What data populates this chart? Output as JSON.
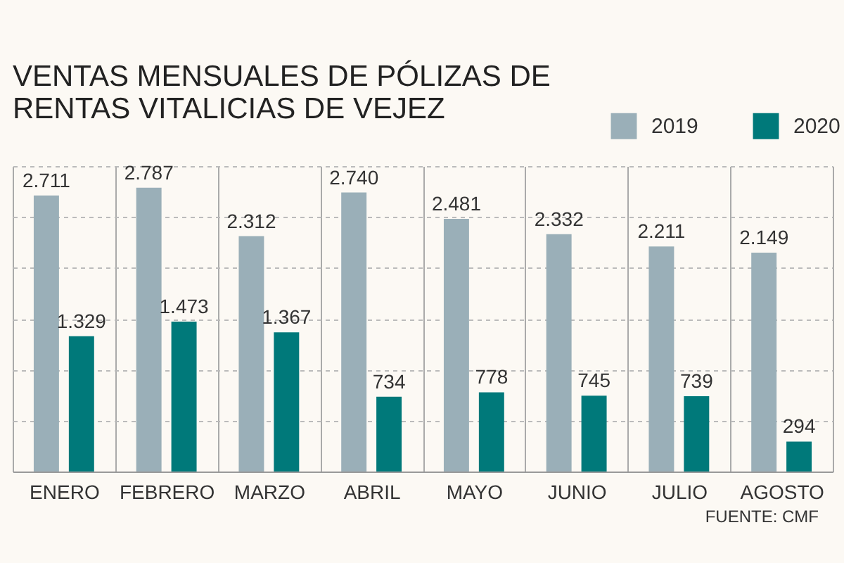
{
  "chart_data": {
    "type": "bar",
    "title": "VENTAS MENSUALES DE PÓLIZAS DE RENTAS VITALICIAS DE VEJEZ",
    "categories": [
      "ENERO",
      "FEBRERO",
      "MARZO",
      "ABRIL",
      "MAYO",
      "JUNIO",
      "JULIO",
      "AGOSTO"
    ],
    "series": [
      {
        "name": "2019",
        "color": "#9aafb8",
        "values": [
          2711,
          2787,
          2312,
          2740,
          2481,
          2332,
          2211,
          2149
        ],
        "value_labels": [
          "2.711",
          "2.787",
          "2.312",
          "2.740",
          "2.481",
          "2.332",
          "2.211",
          "2.149"
        ]
      },
      {
        "name": "2020",
        "color": "#00797a",
        "values": [
          1329,
          1473,
          1367,
          734,
          778,
          745,
          739,
          294
        ],
        "value_labels": [
          "1.329",
          "1.473",
          "1.367",
          "734",
          "778",
          "745",
          "739",
          "294"
        ]
      }
    ],
    "ylim": [
      0,
      3000
    ],
    "yticks": [
      {
        "value": 500,
        "label": null
      },
      {
        "value": 1000,
        "label": null
      },
      {
        "value": 1500,
        "label": null
      },
      {
        "value": 2000,
        "label": null
      },
      {
        "value": 2500,
        "label": null
      },
      {
        "value": 3000,
        "label": null
      }
    ],
    "tick_labels": "x",
    "grid": true,
    "legend": "top right",
    "annotations": [
      "FUENTE: CMF"
    ]
  }
}
